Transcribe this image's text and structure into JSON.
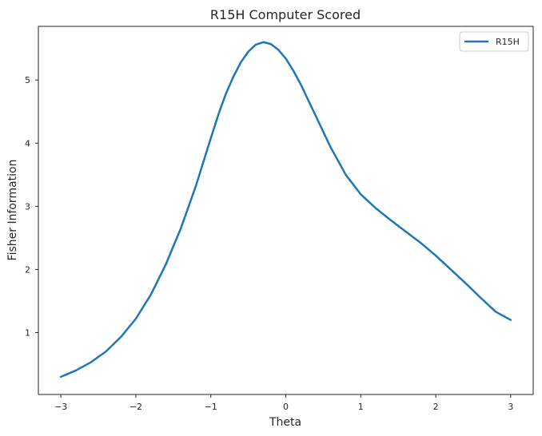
{
  "chart_data": {
    "type": "line",
    "title": "R15H Computer Scored",
    "xlabel": "Theta",
    "ylabel": "Fisher Information",
    "xlim": [
      -3.3,
      3.3
    ],
    "ylim": [
      0.02,
      5.85
    ],
    "xticks": [
      -3,
      -2,
      -1,
      0,
      1,
      2,
      3
    ],
    "xtick_labels": [
      "−3",
      "−2",
      "−1",
      "0",
      "1",
      "2",
      "3"
    ],
    "yticks": [
      1,
      2,
      3,
      4,
      5
    ],
    "ytick_labels": [
      "1",
      "2",
      "3",
      "4",
      "5"
    ],
    "grid": false,
    "legend": {
      "position": "top-right"
    },
    "series": [
      {
        "name": "R15H",
        "color": "#1f77b4",
        "x": [
          -3.0,
          -2.8,
          -2.6,
          -2.4,
          -2.2,
          -2.0,
          -1.8,
          -1.6,
          -1.4,
          -1.2,
          -1.0,
          -0.9,
          -0.8,
          -0.7,
          -0.6,
          -0.5,
          -0.4,
          -0.3,
          -0.2,
          -0.1,
          0.0,
          0.1,
          0.2,
          0.4,
          0.6,
          0.8,
          1.0,
          1.2,
          1.4,
          1.6,
          1.8,
          2.0,
          2.2,
          2.4,
          2.6,
          2.8,
          3.0
        ],
        "y": [
          0.3,
          0.4,
          0.53,
          0.7,
          0.93,
          1.22,
          1.6,
          2.08,
          2.65,
          3.32,
          4.08,
          4.45,
          4.78,
          5.05,
          5.28,
          5.45,
          5.56,
          5.6,
          5.57,
          5.48,
          5.34,
          5.15,
          4.93,
          4.43,
          3.93,
          3.5,
          3.19,
          2.97,
          2.78,
          2.6,
          2.42,
          2.22,
          2.0,
          1.78,
          1.55,
          1.33,
          1.2
        ]
      }
    ]
  }
}
